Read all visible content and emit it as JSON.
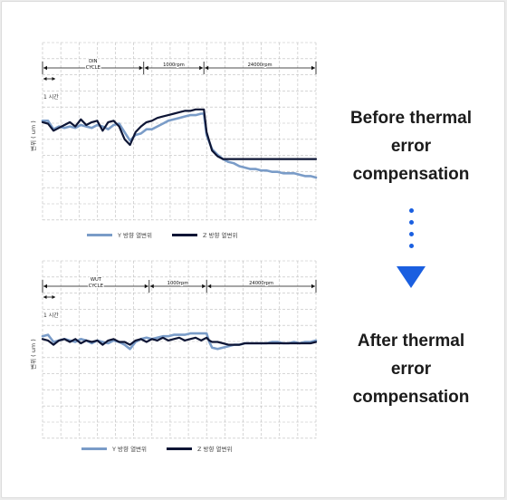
{
  "colors": {
    "y_series": "#7a9cc8",
    "z_series": "#0d1535",
    "accent": "#1a5fe0",
    "grid": "#bdbdbd"
  },
  "captions": {
    "before": [
      "Before thermal",
      "error",
      "compensation"
    ],
    "after": [
      "After thermal",
      "error",
      "compensation"
    ]
  },
  "icons": {
    "steps": "dotted-steps-icon",
    "arrow": "arrow-down-icon"
  },
  "chart_data": [
    {
      "type": "line",
      "ylabel": "변위 ( um )",
      "time_scale_label": "1 시간",
      "phase_labels": [
        {
          "text": [
            "DIN",
            "CYCLE"
          ],
          "start": 0,
          "end": 37
        },
        {
          "text": [
            "1000rpm"
          ],
          "start": 37,
          "end": 59
        },
        {
          "text": [
            "24000rpm"
          ],
          "start": 59,
          "end": 100
        }
      ],
      "xlim": [
        0,
        100
      ],
      "ylim": [
        0,
        9
      ],
      "grid": true,
      "legend_position": "bottom",
      "series": [
        {
          "name": "Y 방향 열변위",
          "color_key": "y_series",
          "x": [
            0,
            2,
            4,
            6,
            8,
            10,
            12,
            14,
            16,
            18,
            20,
            22,
            24,
            26,
            28,
            30,
            32,
            34,
            36,
            38,
            40,
            42,
            44,
            46,
            48,
            50,
            52,
            54,
            56,
            58,
            59,
            60,
            62,
            64,
            66,
            68,
            70,
            72,
            74,
            76,
            78,
            80,
            82,
            84,
            86,
            88,
            90,
            92,
            94,
            96,
            98,
            100
          ],
          "values": [
            7.0,
            7.0,
            6.4,
            6.6,
            6.5,
            6.6,
            6.5,
            6.7,
            6.6,
            6.5,
            6.7,
            6.6,
            6.4,
            6.7,
            6.8,
            6.2,
            5.6,
            6.0,
            6.1,
            6.4,
            6.4,
            6.6,
            6.8,
            7.0,
            7.1,
            7.2,
            7.3,
            7.4,
            7.4,
            7.5,
            7.5,
            6.0,
            5.0,
            4.6,
            4.3,
            4.1,
            4.0,
            3.8,
            3.7,
            3.6,
            3.6,
            3.5,
            3.5,
            3.4,
            3.4,
            3.3,
            3.3,
            3.3,
            3.2,
            3.1,
            3.1,
            3.0
          ]
        },
        {
          "name": "Z 방향 열변위",
          "color_key": "z_series",
          "x": [
            0,
            2,
            4,
            6,
            8,
            10,
            12,
            14,
            16,
            18,
            20,
            22,
            24,
            26,
            28,
            30,
            32,
            34,
            36,
            38,
            40,
            42,
            44,
            46,
            48,
            50,
            52,
            54,
            56,
            58,
            59,
            60,
            62,
            64,
            66,
            68,
            70,
            72,
            74,
            76,
            78,
            80,
            82,
            84,
            86,
            88,
            90,
            92,
            94,
            96,
            98,
            100
          ],
          "values": [
            6.9,
            6.8,
            6.3,
            6.5,
            6.7,
            6.9,
            6.6,
            7.1,
            6.7,
            6.9,
            7.0,
            6.3,
            6.9,
            7.0,
            6.6,
            5.7,
            5.3,
            6.2,
            6.6,
            6.9,
            7.0,
            7.2,
            7.3,
            7.4,
            7.5,
            7.6,
            7.7,
            7.7,
            7.8,
            7.8,
            7.8,
            6.2,
            4.9,
            4.5,
            4.3,
            4.3,
            4.3,
            4.3,
            4.3,
            4.3,
            4.3,
            4.3,
            4.3,
            4.3,
            4.3,
            4.3,
            4.3,
            4.3,
            4.3,
            4.3,
            4.3,
            4.3
          ]
        }
      ]
    },
    {
      "type": "line",
      "ylabel": "변위 ( um )",
      "time_scale_label": "1 시간",
      "phase_labels": [
        {
          "text": [
            "WUT",
            "CYCLE"
          ],
          "start": 0,
          "end": 39
        },
        {
          "text": [
            "1000rpm"
          ],
          "start": 39,
          "end": 60
        },
        {
          "text": [
            "24000rpm"
          ],
          "start": 60,
          "end": 100
        }
      ],
      "xlim": [
        0,
        100
      ],
      "ylim": [
        0,
        9
      ],
      "grid": true,
      "legend_position": "bottom",
      "series": [
        {
          "name": "Y 방향 열변위",
          "color_key": "y_series",
          "x": [
            0,
            2,
            4,
            6,
            8,
            10,
            12,
            14,
            16,
            18,
            20,
            22,
            24,
            26,
            28,
            30,
            32,
            34,
            36,
            38,
            40,
            42,
            44,
            46,
            48,
            50,
            52,
            54,
            56,
            58,
            60,
            61,
            62,
            64,
            66,
            68,
            70,
            72,
            74,
            76,
            78,
            80,
            82,
            84,
            86,
            88,
            90,
            92,
            94,
            96,
            98,
            100
          ],
          "values": [
            7.2,
            7.3,
            6.8,
            6.9,
            7.0,
            6.9,
            6.8,
            7.0,
            6.9,
            6.7,
            6.9,
            6.8,
            6.7,
            6.9,
            6.8,
            6.6,
            6.3,
            6.8,
            7.0,
            7.1,
            7.0,
            7.1,
            7.2,
            7.2,
            7.3,
            7.3,
            7.3,
            7.4,
            7.4,
            7.4,
            7.4,
            6.8,
            6.4,
            6.3,
            6.4,
            6.5,
            6.6,
            6.6,
            6.7,
            6.7,
            6.7,
            6.7,
            6.7,
            6.8,
            6.8,
            6.7,
            6.7,
            6.8,
            6.7,
            6.8,
            6.8,
            6.9
          ]
        },
        {
          "name": "Z 방향 열변위",
          "color_key": "z_series",
          "x": [
            0,
            2,
            4,
            6,
            8,
            10,
            12,
            14,
            16,
            18,
            20,
            22,
            24,
            26,
            28,
            30,
            32,
            34,
            36,
            38,
            40,
            42,
            44,
            46,
            48,
            50,
            52,
            54,
            56,
            58,
            60,
            61,
            62,
            64,
            66,
            68,
            70,
            72,
            74,
            76,
            78,
            80,
            82,
            84,
            86,
            88,
            90,
            92,
            94,
            96,
            98,
            100
          ],
          "values": [
            7.0,
            6.9,
            6.6,
            6.9,
            7.0,
            6.8,
            7.0,
            6.7,
            6.9,
            6.8,
            6.9,
            6.6,
            6.9,
            7.0,
            6.8,
            6.8,
            6.6,
            6.9,
            7.0,
            6.8,
            7.0,
            6.9,
            7.1,
            6.9,
            7.0,
            7.1,
            6.9,
            7.0,
            7.1,
            6.9,
            7.1,
            6.9,
            6.8,
            6.8,
            6.7,
            6.6,
            6.6,
            6.6,
            6.7,
            6.7,
            6.7,
            6.7,
            6.7,
            6.7,
            6.7,
            6.7,
            6.7,
            6.7,
            6.7,
            6.7,
            6.7,
            6.8
          ]
        }
      ]
    }
  ]
}
